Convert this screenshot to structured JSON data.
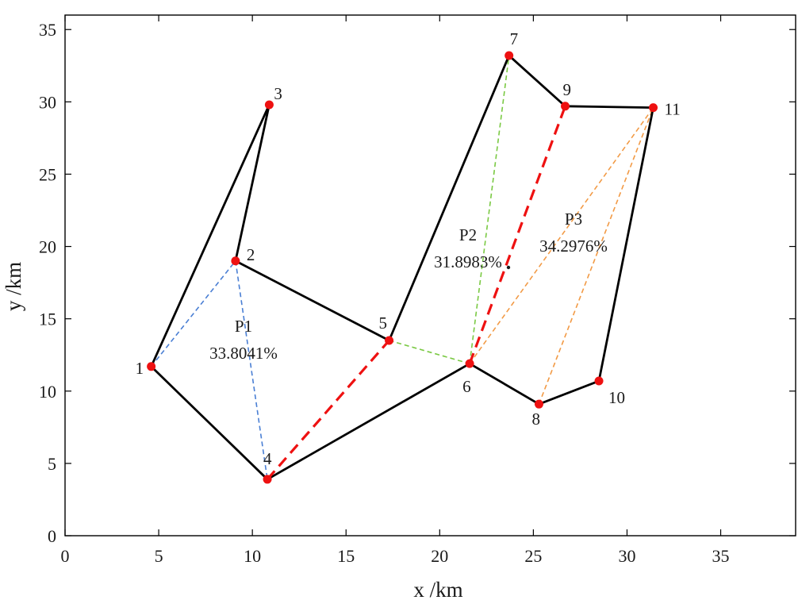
{
  "chart_data": {
    "type": "scatter",
    "xlabel": "x /km",
    "ylabel": "y /km",
    "xlim": [
      0,
      39
    ],
    "ylim": [
      0,
      36
    ],
    "xticks": [
      0,
      5,
      10,
      15,
      20,
      25,
      30,
      35
    ],
    "yticks": [
      0,
      5,
      10,
      15,
      20,
      25,
      30,
      35
    ],
    "grid": false,
    "nodes": [
      {
        "id": "1",
        "x": 4.6,
        "y": 11.7
      },
      {
        "id": "2",
        "x": 9.1,
        "y": 19.0
      },
      {
        "id": "3",
        "x": 10.9,
        "y": 29.8
      },
      {
        "id": "4",
        "x": 10.8,
        "y": 3.9
      },
      {
        "id": "5",
        "x": 17.3,
        "y": 13.5
      },
      {
        "id": "6",
        "x": 21.6,
        "y": 11.9
      },
      {
        "id": "7",
        "x": 23.7,
        "y": 33.2
      },
      {
        "id": "8",
        "x": 25.3,
        "y": 9.1
      },
      {
        "id": "9",
        "x": 26.7,
        "y": 29.7
      },
      {
        "id": "10",
        "x": 28.5,
        "y": 10.7
      },
      {
        "id": "11",
        "x": 31.4,
        "y": 29.6
      }
    ],
    "node_color": "#ee1111",
    "solid_edges": [
      [
        "1",
        "3"
      ],
      [
        "3",
        "2"
      ],
      [
        "2",
        "5"
      ],
      [
        "1",
        "4"
      ],
      [
        "4",
        "6"
      ],
      [
        "5",
        "7"
      ],
      [
        "7",
        "9"
      ],
      [
        "9",
        "11"
      ],
      [
        "11",
        "10"
      ],
      [
        "10",
        "8"
      ],
      [
        "8",
        "6"
      ]
    ],
    "solid_edge_color": "#000000",
    "red_dashed_edges": [
      [
        "4",
        "5"
      ],
      [
        "6",
        "9"
      ]
    ],
    "red_dashed_color": "#ee1111",
    "partitions": [
      {
        "label": "P1",
        "percent": "33.8041%",
        "color": "#4a7fd4",
        "edges": [
          [
            "1",
            "2"
          ],
          [
            "2",
            "4"
          ]
        ]
      },
      {
        "label": "P2",
        "percent": "31.8983%",
        "color": "#7ac943",
        "edges": [
          [
            "5",
            "6"
          ],
          [
            "6",
            "7"
          ]
        ]
      },
      {
        "label": "P3",
        "percent": "34.2976%",
        "color": "#f29a45",
        "edges": [
          [
            "6",
            "11"
          ],
          [
            "8",
            "11"
          ]
        ]
      }
    ]
  }
}
